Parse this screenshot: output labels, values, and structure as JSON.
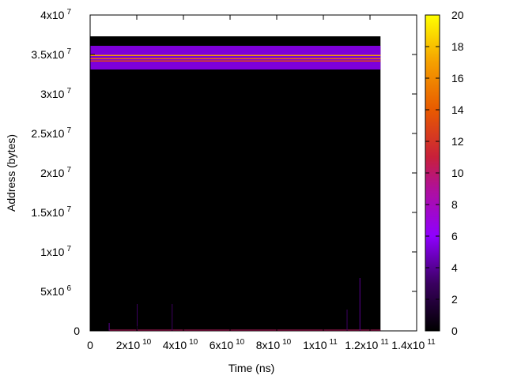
{
  "chart_data": {
    "type": "heatmap",
    "title": "",
    "xlabel": "Time (ns)",
    "ylabel": "Address (bytes)",
    "xlim": [
      0,
      140000000000
    ],
    "ylim": [
      0,
      40000000
    ],
    "cbrange": [
      0,
      20
    ],
    "palette": [
      "#000000",
      "#5a0090",
      "#8f00ff",
      "#c8203a",
      "#e85a00",
      "#f5a000",
      "#ffff00"
    ],
    "x_ticks": [
      {
        "value": 0,
        "base": "0",
        "exp": ""
      },
      {
        "value": 20000000000,
        "base": "2x10",
        "exp": "10"
      },
      {
        "value": 40000000000,
        "base": "4x10",
        "exp": "10"
      },
      {
        "value": 60000000000,
        "base": "6x10",
        "exp": "10"
      },
      {
        "value": 80000000000,
        "base": "8x10",
        "exp": "10"
      },
      {
        "value": 100000000000,
        "base": "1x10",
        "exp": "11"
      },
      {
        "value": 120000000000,
        "base": "1.2x10",
        "exp": "11"
      },
      {
        "value": 140000000000,
        "base": "1.4x10",
        "exp": "11"
      }
    ],
    "y_ticks": [
      {
        "value": 0,
        "base": "0",
        "exp": ""
      },
      {
        "value": 5000000,
        "base": "5x10",
        "exp": "6"
      },
      {
        "value": 10000000,
        "base": "1x10",
        "exp": "7"
      },
      {
        "value": 15000000,
        "base": "1.5x10",
        "exp": "7"
      },
      {
        "value": 20000000,
        "base": "2x10",
        "exp": "7"
      },
      {
        "value": 25000000,
        "base": "2.5x10",
        "exp": "7"
      },
      {
        "value": 30000000,
        "base": "3x10",
        "exp": "7"
      },
      {
        "value": 35000000,
        "base": "3.5x10",
        "exp": "7"
      },
      {
        "value": 40000000,
        "base": "4x10",
        "exp": "7"
      }
    ],
    "cb_ticks": [
      "0",
      "2",
      "4",
      "6",
      "8",
      "10",
      "12",
      "14",
      "16",
      "18",
      "20"
    ],
    "data_extent": {
      "x": [
        0,
        124500000000
      ],
      "y": [
        0,
        37300000
      ]
    },
    "bands": [
      {
        "x": [
          0,
          124500000000
        ],
        "y": [
          33100000,
          36100000
        ],
        "value": 5
      },
      {
        "x": [
          0,
          124500000000
        ],
        "y": [
          34850000,
          34950000
        ],
        "value": 17
      },
      {
        "x": [
          0,
          124500000000
        ],
        "y": [
          34450000,
          34550000
        ],
        "value": 15
      },
      {
        "x": [
          0,
          124500000000
        ],
        "y": [
          34150000,
          34250000
        ],
        "value": 13
      },
      {
        "x": [
          8000000000,
          124500000000
        ],
        "y": [
          0,
          150000
        ],
        "value": 10
      }
    ],
    "spikes": [
      {
        "x": 8000000000,
        "y": [
          0,
          1000000
        ],
        "value": 3
      },
      {
        "x": 20000000000,
        "y": [
          0,
          3400000
        ],
        "value": 2
      },
      {
        "x": 35000000000,
        "y": [
          0,
          3400000
        ],
        "value": 2
      },
      {
        "x": 110000000000,
        "y": [
          0,
          2700000
        ],
        "value": 2
      },
      {
        "x": 115500000000,
        "y": [
          0,
          6700000
        ],
        "value": 3
      }
    ]
  }
}
